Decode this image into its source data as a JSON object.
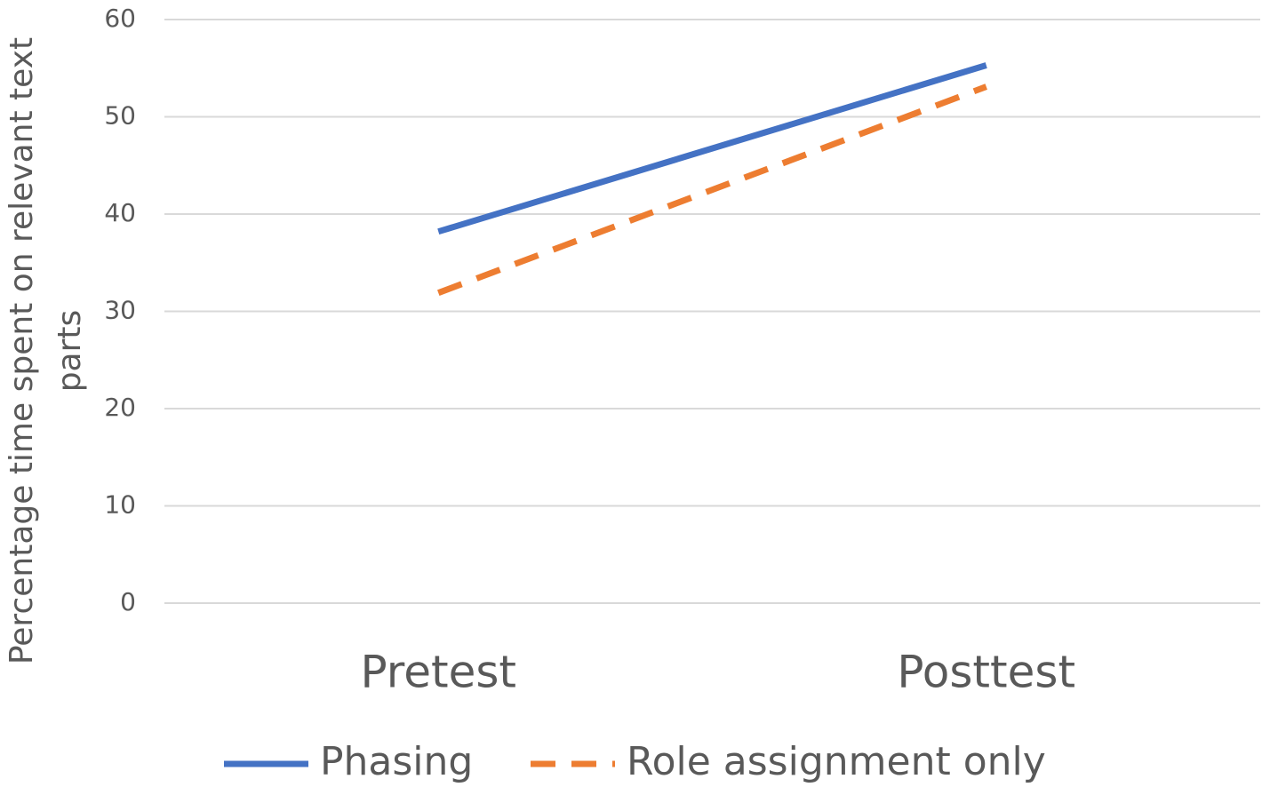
{
  "chart_data": {
    "type": "line",
    "y_label": "Percentage time spent on relevant text parts",
    "categories": [
      "Pretest",
      "Posttest"
    ],
    "series": [
      {
        "name": "Phasing",
        "color": "#4472c4",
        "dashed": false,
        "values": [
          38.2,
          55.3
        ]
      },
      {
        "name": "Role assignment only",
        "color": "#ed7d31",
        "dashed": true,
        "values": [
          31.9,
          53.1
        ]
      }
    ],
    "ylim": [
      0,
      60
    ],
    "yticks": [
      0,
      10,
      20,
      30,
      40,
      50,
      60
    ],
    "grid": true
  }
}
